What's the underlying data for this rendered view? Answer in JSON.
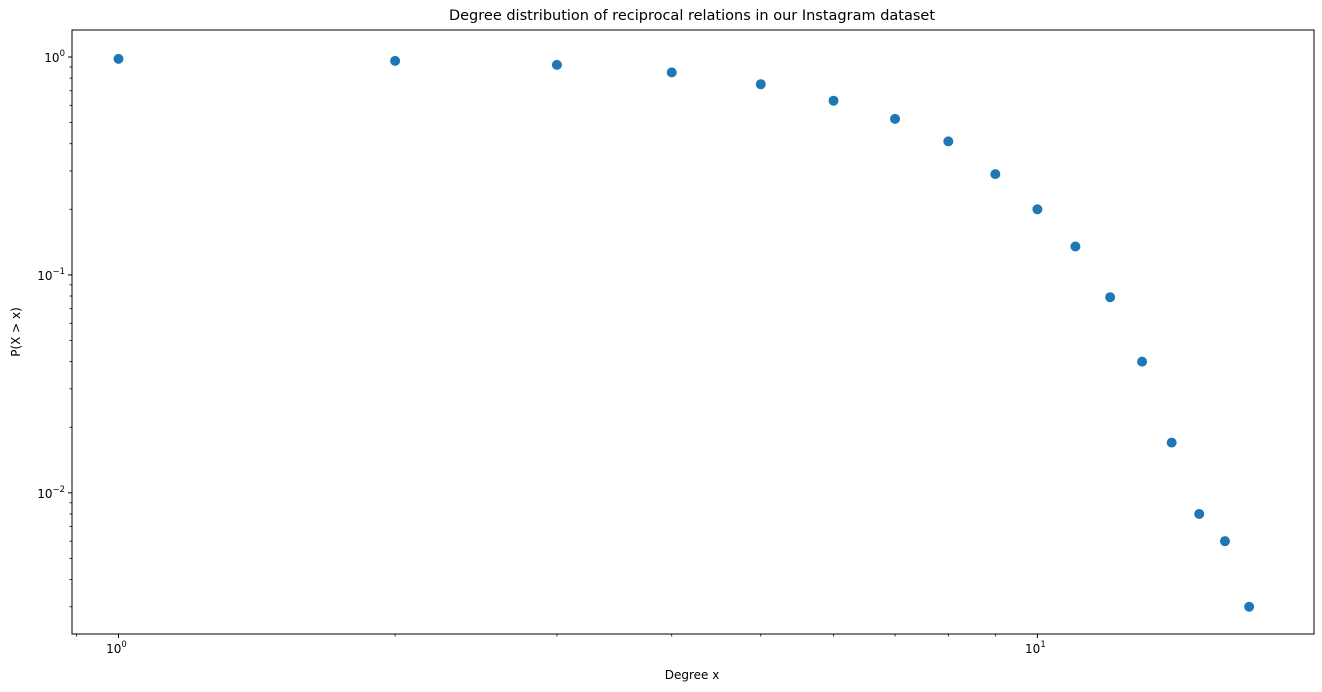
{
  "chart_data": {
    "type": "scatter",
    "title": "Degree distribution of reciprocal relations in our Instagram dataset",
    "xlabel": "Degree x",
    "ylabel": "P(X > x)",
    "xscale": "log",
    "yscale": "log",
    "xlim": [
      0.89,
      20.0
    ],
    "ylim": [
      0.00225,
      1.33
    ],
    "grid": false,
    "legend": "none",
    "marker_color": "#1f77b4",
    "x_ticks": [
      {
        "base": "10",
        "exp": "0",
        "value": 1
      },
      {
        "base": "10",
        "exp": "1",
        "value": 10
      }
    ],
    "y_ticks": [
      {
        "base": "10",
        "exp": "0",
        "value": 1
      },
      {
        "base": "10",
        "exp": "−1",
        "value": 0.1
      },
      {
        "base": "10",
        "exp": "−2",
        "value": 0.01
      }
    ],
    "series": [
      {
        "x": [
          1,
          2,
          3,
          4,
          5,
          6,
          7,
          8,
          9,
          10,
          11,
          12,
          13,
          14,
          15,
          16,
          17
        ],
        "y": [
          0.98,
          0.96,
          0.92,
          0.85,
          0.75,
          0.63,
          0.52,
          0.41,
          0.29,
          0.2,
          0.135,
          0.079,
          0.04,
          0.017,
          0.008,
          0.006,
          0.003
        ]
      }
    ]
  }
}
